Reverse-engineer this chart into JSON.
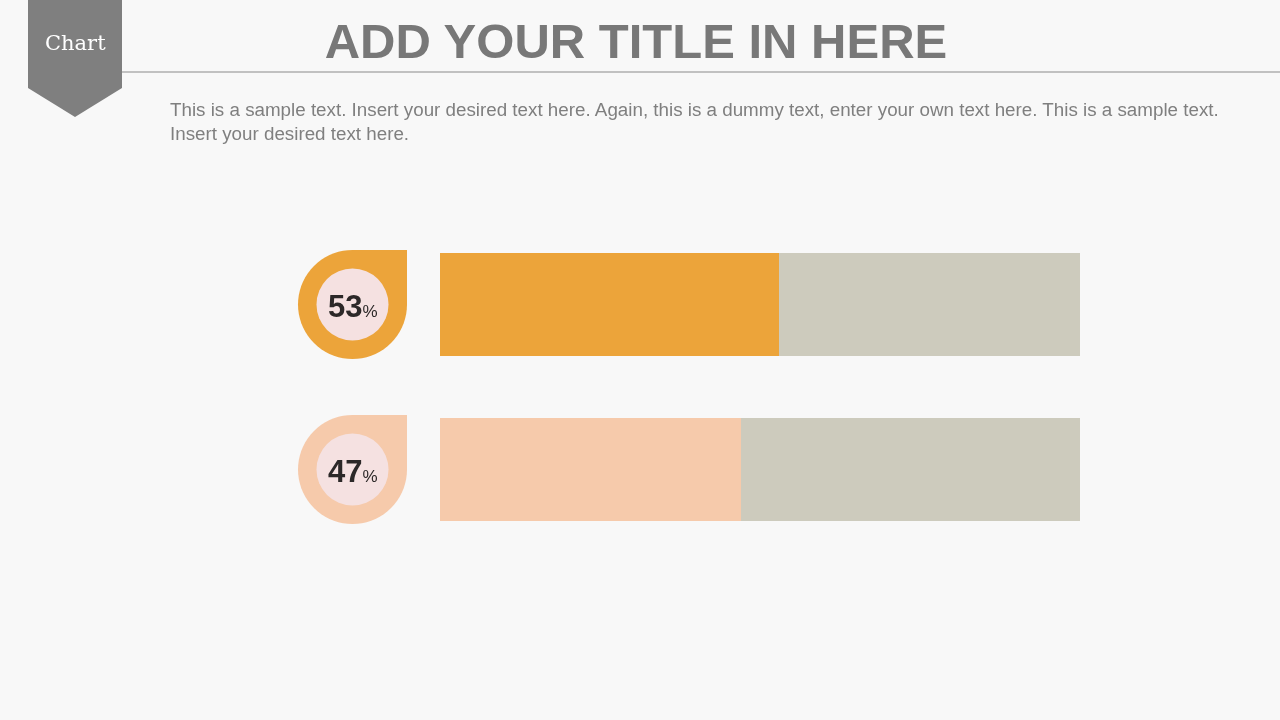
{
  "chart_data": {
    "type": "bar",
    "orientation": "horizontal",
    "stacked": true,
    "title": "ADD YOUR TITLE IN HERE",
    "subtitle": "This is a sample text. Insert your desired text here. Again, this is a dummy text, enter your own text here. This is a sample text. Insert your desired text here.",
    "annotations": [
      "Chart"
    ],
    "categories": [
      null,
      null
    ],
    "xlim": [
      0,
      100
    ],
    "tick_labels": false,
    "series": [
      {
        "colors": [
          "#eca43a",
          "#f6caab"
        ],
        "values": [
          53,
          47
        ],
        "value_labels": [
          "53%",
          "47%"
        ]
      },
      {
        "color": "#cdcbbd",
        "values": [
          47,
          53
        ]
      }
    ]
  }
}
